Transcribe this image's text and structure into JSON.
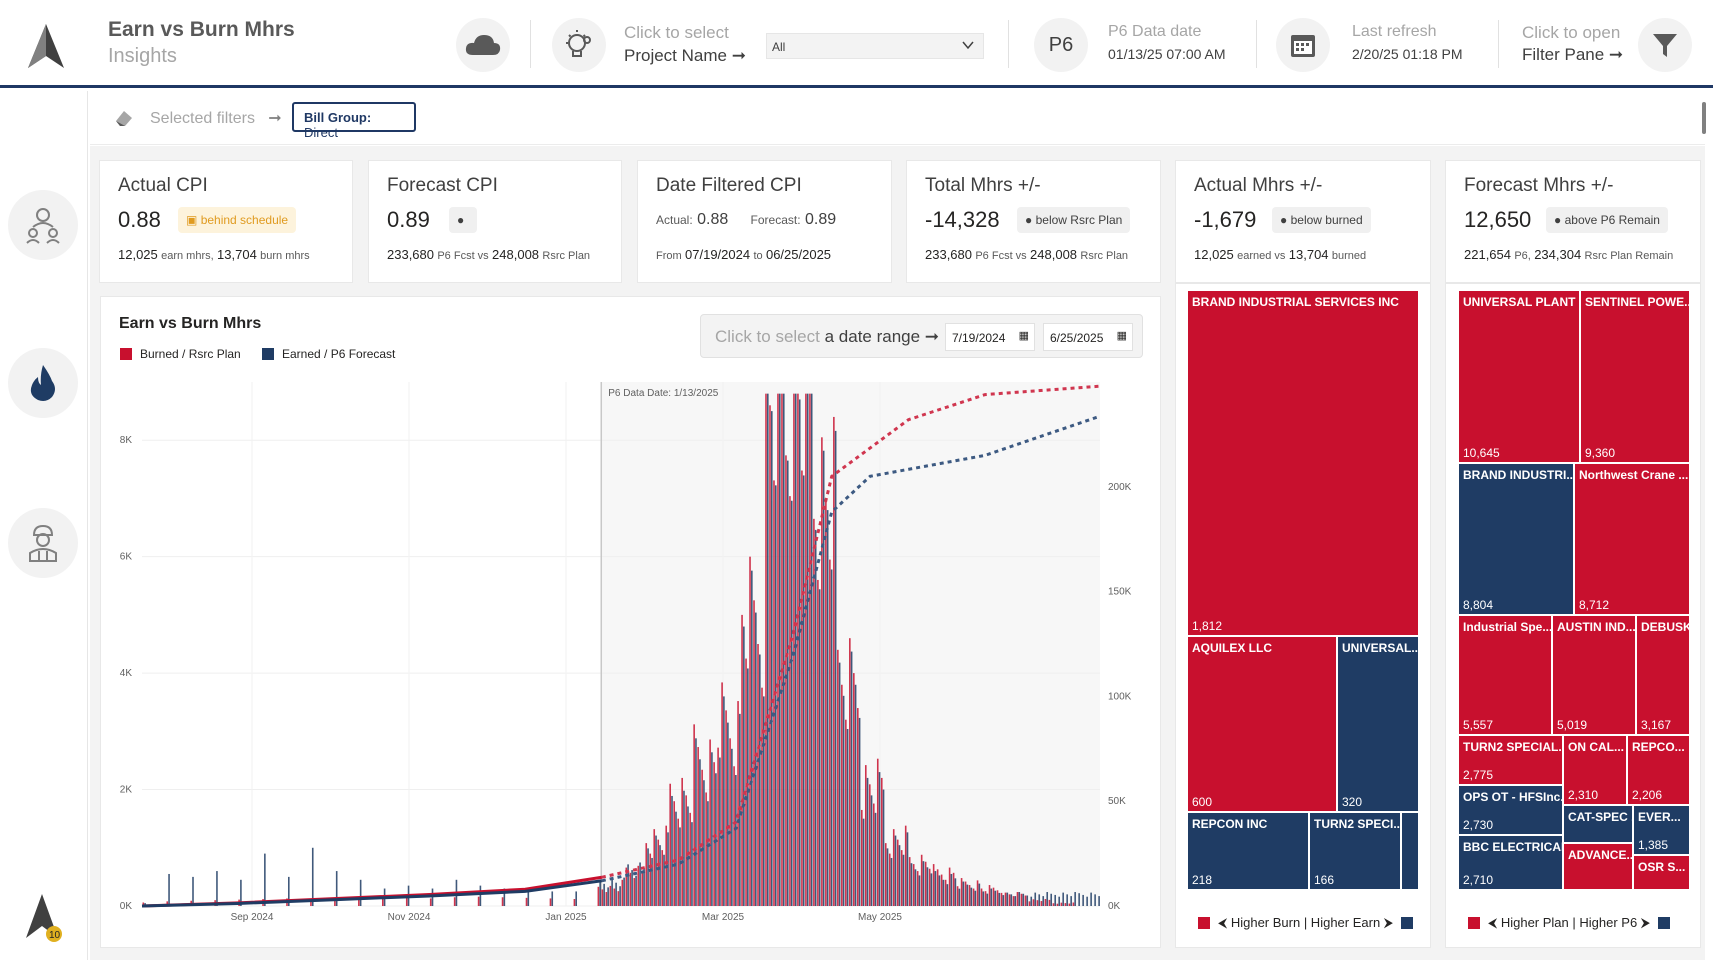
{
  "header": {
    "title": "Earn vs Burn Mhrs",
    "subtitle": "Insights",
    "project_select_top": "Click to select",
    "project_select_bottom": "Project Name ➞",
    "project_dropdown_value": "All",
    "p6_badge": "P6",
    "p6_label": "P6 Data date",
    "p6_value": "01/13/25 07:00 AM",
    "refresh_label": "Last refresh",
    "refresh_value": "2/20/25 01:18 PM",
    "filter_pane_top": "Click to open",
    "filter_pane_bottom": "Filter Pane ➞"
  },
  "filters": {
    "label": "Selected filters",
    "arrow": "➞",
    "chip_key": "Bill Group:",
    "chip_value": "Direct"
  },
  "cards": {
    "actual_cpi": {
      "title": "Actual CPI",
      "value": "0.88",
      "badge": "behind schedule",
      "s1": "12,025",
      "s1m": "earn mhrs,",
      "s2": "13,704",
      "s2m": "burn mhrs"
    },
    "forecast_cpi": {
      "title": "Forecast CPI",
      "value": "0.89",
      "s1": "233,680",
      "s1m": "P6 Fcst vs",
      "s2": "248,008",
      "s2m": "Rsrc Plan"
    },
    "date_cpi": {
      "title": "Date Filtered CPI",
      "actual_label": "Actual:",
      "actual_value": "0.88",
      "forecast_label": "Forecast:",
      "forecast_value": "0.89",
      "from_label": "From",
      "from_value": "07/19/2024",
      "to_label": "to",
      "to_value": "06/25/2025"
    },
    "total_mhrs": {
      "title": "Total Mhrs +/-",
      "value": "-14,328",
      "badge": "below Rsrc Plan",
      "s1": "233,680",
      "s1m": "P6 Fcst vs",
      "s2": "248,008",
      "s2m": "Rsrc Plan"
    },
    "actual_mhrs": {
      "title": "Actual Mhrs +/-",
      "value": "-1,679",
      "badge": "below burned",
      "s1": "12,025",
      "s1m": "earned vs",
      "s2": "13,704",
      "s2m": "burned"
    },
    "forecast_mhrs": {
      "title": "Forecast Mhrs +/-",
      "value": "12,650",
      "badge": "above P6 Remain",
      "s1": "221,654",
      "s1m": "P6,",
      "s2": "234,304",
      "s2m": "Rsrc Plan Remain"
    }
  },
  "chart": {
    "title": "Earn vs Burn Mhrs",
    "legend_burn": "Burned / Rsrc Plan",
    "legend_earn": "Earned / P6 Forecast",
    "date_prompt_grey": "Click to select",
    "date_prompt_dark": "a date range ➞",
    "date_from": "7/19/2024",
    "date_to": "6/25/2025",
    "annotation": "P6 Data Date: 1/13/2025",
    "colors": {
      "burn": "#c8102e",
      "earn": "#1f3c64"
    }
  },
  "chart_data": {
    "type": "bar",
    "x_ticks": [
      "Sep 2024",
      "Nov 2024",
      "Jan 2025",
      "Mar 2025",
      "May 2025"
    ],
    "y_left_ticks": [
      "0K",
      "2K",
      "4K",
      "6K",
      "8K"
    ],
    "y_left_lim": [
      0,
      9000
    ],
    "y_right_ticks": [
      "0K",
      "50K",
      "100K",
      "150K",
      "200K"
    ],
    "y_right_lim": [
      0,
      250000
    ],
    "bar_series": [
      {
        "name": "Burned / Rsrc Plan",
        "note": "daily burned / planned mhrs",
        "values_by_week": [
          60,
          80,
          90,
          100,
          110,
          120,
          130,
          120,
          130,
          140,
          150,
          140,
          130,
          150,
          160,
          150,
          140,
          130,
          120,
          300,
          600,
          1200,
          2000,
          2600,
          3200,
          5000,
          8600,
          8800,
          7000,
          4000,
          2200,
          1200,
          800,
          600,
          400,
          300,
          200,
          100,
          50,
          0
        ]
      },
      {
        "name": "Earned / P6 Forecast",
        "note": "daily earned / P6 forecast mhrs",
        "values_by_week": [
          50,
          550,
          500,
          600,
          450,
          900,
          500,
          1000,
          600,
          450,
          300,
          350,
          300,
          450,
          350,
          300,
          300,
          250,
          250,
          400,
          650,
          1100,
          1800,
          2400,
          3000,
          4800,
          8500,
          8700,
          6800,
          3800,
          2000,
          1100,
          700,
          500,
          350,
          250,
          200,
          200,
          200,
          200
        ]
      }
    ],
    "cumulative_series": [
      {
        "name": "Burned cumulative",
        "end_value": 13704,
        "forecast_end": 248008
      },
      {
        "name": "Earned cumulative",
        "end_value": 12025,
        "forecast_end": 233680
      }
    ]
  },
  "treemap_actual": {
    "legend": "⮜ Higher Burn | Higher Earn ⮞",
    "items": [
      {
        "name": "BRAND INDUSTRIAL SERVICES INC",
        "value": "1,812",
        "color": "red"
      },
      {
        "name": "AQUILEX LLC",
        "value": "600",
        "color": "red"
      },
      {
        "name": "UNIVERSAL...",
        "value": "320",
        "color": "blue"
      },
      {
        "name": "REPCON INC",
        "value": "218",
        "color": "blue"
      },
      {
        "name": "TURN2 SPECI...",
        "value": "166",
        "color": "blue"
      },
      {
        "name": "",
        "value": "",
        "color": "blue"
      }
    ]
  },
  "treemap_forecast": {
    "legend": "⮜ Higher Plan | Higher P6 ⮞",
    "items": [
      {
        "name": "UNIVERSAL PLANT ...",
        "value": "10,645",
        "color": "red"
      },
      {
        "name": "SENTINEL POWE...",
        "value": "9,360",
        "color": "red"
      },
      {
        "name": "BRAND INDUSTRI...",
        "value": "8,804",
        "color": "blue"
      },
      {
        "name": "Northwest Crane ...",
        "value": "8,712",
        "color": "red"
      },
      {
        "name": "Industrial Spe...",
        "value": "5,557",
        "color": "red"
      },
      {
        "name": "AUSTIN IND...",
        "value": "5,019",
        "color": "red"
      },
      {
        "name": "DEBUSK",
        "value": "3,167",
        "color": "red"
      },
      {
        "name": "TURN2 SPECIAL...",
        "value": "2,775",
        "color": "red"
      },
      {
        "name": "ON CAL...",
        "value": "2,310",
        "color": "red"
      },
      {
        "name": "REPCO...",
        "value": "2,206",
        "color": "red"
      },
      {
        "name": "OPS OT - HFSInc...",
        "value": "2,730",
        "color": "blue"
      },
      {
        "name": "CAT-SPEC ...",
        "value": "",
        "color": "blue"
      },
      {
        "name": "EVER...",
        "value": "1,385",
        "color": "blue"
      },
      {
        "name": "BBC ELECTRICAL...",
        "value": "2,710",
        "color": "blue"
      },
      {
        "name": "ADVANCE...",
        "value": "",
        "color": "red"
      },
      {
        "name": "OSR S...",
        "value": "",
        "color": "red"
      }
    ]
  }
}
